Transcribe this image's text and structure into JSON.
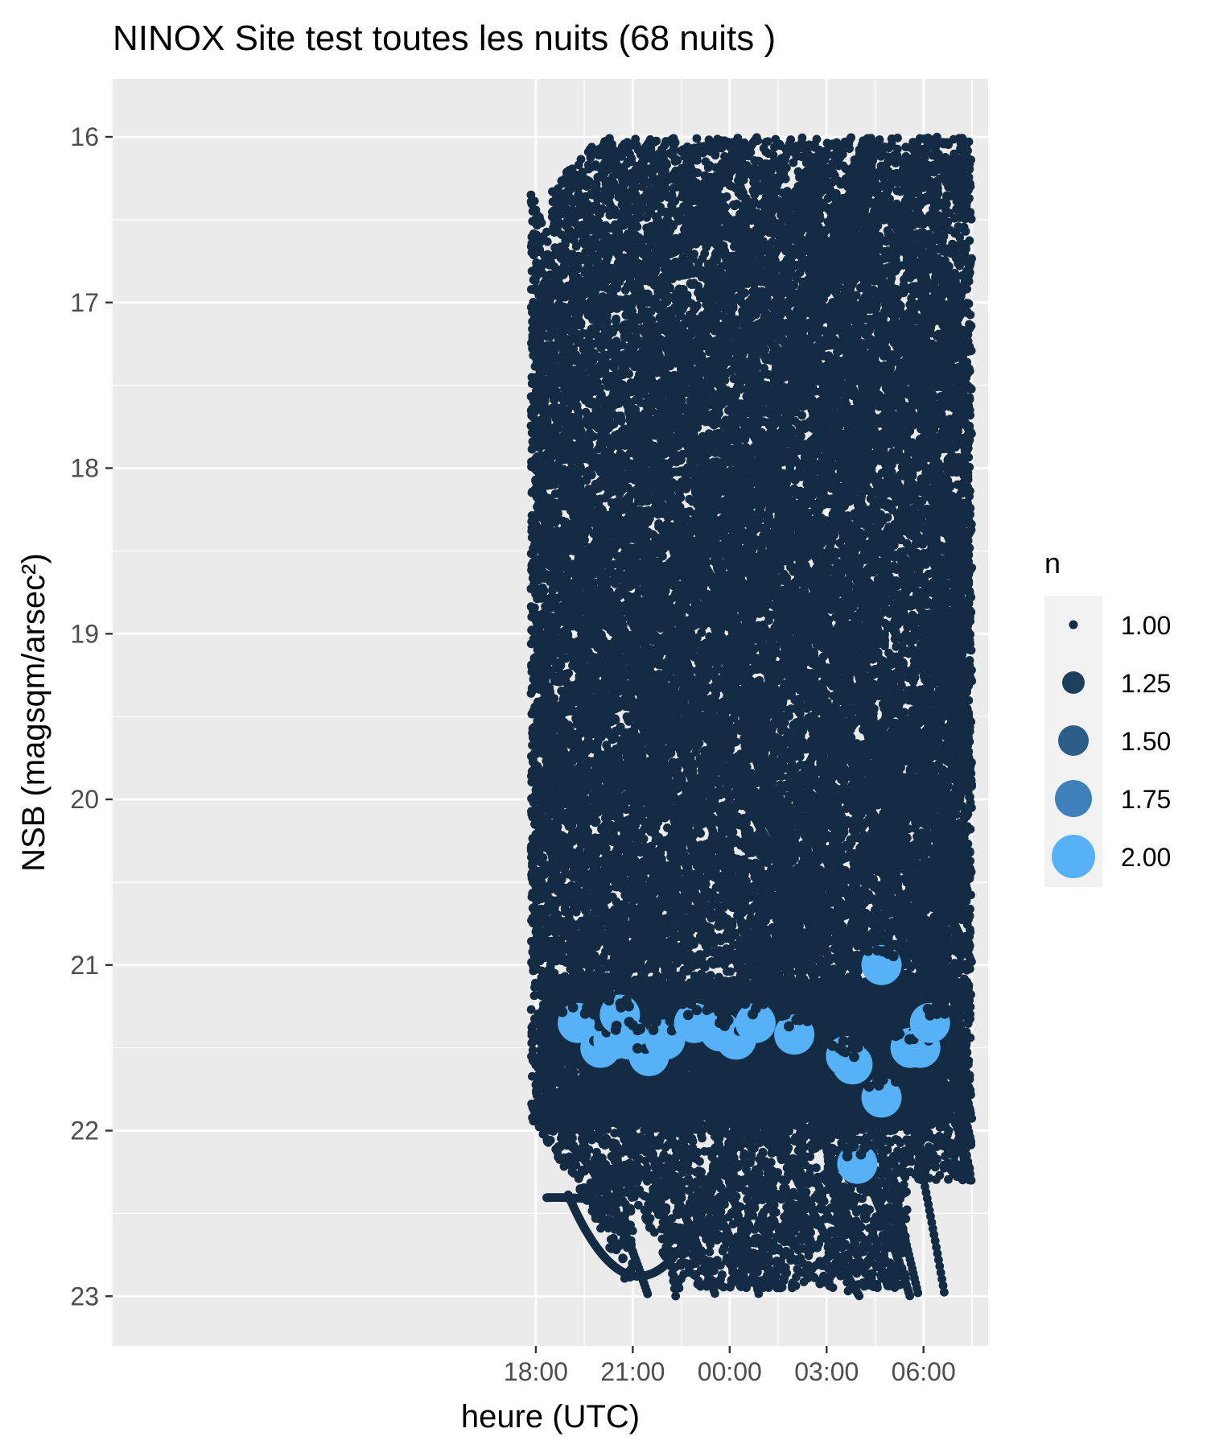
{
  "chart_data": {
    "type": "scatter",
    "title": "NINOX Site test toutes les nuits (68 nuits )",
    "xlabel": "heure (UTC)",
    "ylabel": "NSB (magsqm/arsec²)",
    "x_axis": {
      "unit": "hours relative to 00:00 UTC (negative = previous evening)",
      "range": [
        -19.1,
        8.0
      ],
      "ticks": [
        {
          "value": -6,
          "label": "18:00"
        },
        {
          "value": -3,
          "label": "21:00"
        },
        {
          "value": 0,
          "label": "00:00"
        },
        {
          "value": 3,
          "label": "03:00"
        },
        {
          "value": 6,
          "label": "06:00"
        }
      ]
    },
    "y_axis": {
      "reversed": true,
      "range": [
        15.65,
        23.3
      ],
      "ticks": [
        {
          "value": 16,
          "label": "16"
        },
        {
          "value": 17,
          "label": "17"
        },
        {
          "value": 18,
          "label": "18"
        },
        {
          "value": 19,
          "label": "19"
        },
        {
          "value": 20,
          "label": "20"
        },
        {
          "value": 21,
          "label": "21"
        },
        {
          "value": 22,
          "label": "22"
        },
        {
          "value": 23,
          "label": "23"
        }
      ]
    },
    "grid": true,
    "legend": {
      "title": "n",
      "placement": "right",
      "entries": [
        {
          "label": "1.00",
          "value": 1.0,
          "color": "#132b43"
        },
        {
          "label": "1.25",
          "value": 1.25,
          "color": "#1d3f5e"
        },
        {
          "label": "1.50",
          "value": 1.5,
          "color": "#2c5e8a"
        },
        {
          "label": "1.75",
          "value": 1.75,
          "color": "#3d80ba"
        },
        {
          "label": "2.00",
          "value": 2.0,
          "color": "#56b1f7"
        }
      ]
    },
    "series": [
      {
        "values_summary": "dense cloud of single measurements (n = 1), x from about 17:45 to 07:35 UTC, NSB from 16.0 to 23.0",
        "n": 1,
        "color": "#132b43",
        "points_n2": [
          {
            "x": -4.7,
            "y": 21.35
          },
          {
            "x": -4.0,
            "y": 21.5
          },
          {
            "x": -3.6,
            "y": 21.45
          },
          {
            "x": -3.4,
            "y": 21.3
          },
          {
            "x": -3.1,
            "y": 21.45
          },
          {
            "x": -2.5,
            "y": 21.55
          },
          {
            "x": -2.0,
            "y": 21.45
          },
          {
            "x": -1.1,
            "y": 21.35
          },
          {
            "x": -0.3,
            "y": 21.4
          },
          {
            "x": 0.2,
            "y": 21.45
          },
          {
            "x": 0.8,
            "y": 21.35
          },
          {
            "x": 2.0,
            "y": 21.42
          },
          {
            "x": 3.6,
            "y": 21.55
          },
          {
            "x": 3.8,
            "y": 21.6
          },
          {
            "x": 3.95,
            "y": 22.2
          },
          {
            "x": 4.7,
            "y": 21.0
          },
          {
            "x": 4.7,
            "y": 21.8
          },
          {
            "x": 5.6,
            "y": 21.5
          },
          {
            "x": 5.9,
            "y": 21.5
          },
          {
            "x": 6.2,
            "y": 21.35
          }
        ],
        "color_n2": "#56b1f7"
      }
    ]
  }
}
